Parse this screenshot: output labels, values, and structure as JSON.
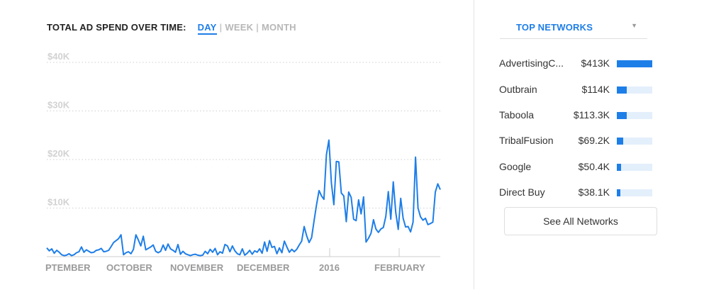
{
  "header": {
    "title": "TOTAL AD SPEND OVER TIME:",
    "tabs": [
      {
        "label": "DAY",
        "active": true
      },
      {
        "label": "WEEK",
        "active": false
      },
      {
        "label": "MONTH",
        "active": false
      }
    ],
    "separator": "|"
  },
  "chart_data": {
    "type": "line",
    "title": "TOTAL AD SPEND OVER TIME:",
    "xlabel": "",
    "ylabel": "",
    "ylim": [
      0,
      40000
    ],
    "y_ticks": [
      {
        "value": 40000,
        "label": "$40K"
      },
      {
        "value": 30000,
        "label": "$30K"
      },
      {
        "value": 20000,
        "label": "$20K"
      },
      {
        "value": 10000,
        "label": "$10K"
      }
    ],
    "x_tick_labels": [
      "PTEMBER",
      "OCTOBER",
      "NOVEMBER",
      "DECEMBER",
      "2016",
      "FEBRUARY"
    ],
    "grid": true,
    "line_color": "#1e7ee8",
    "series": [
      {
        "values": [
          1800,
          1200,
          1600,
          700,
          1300,
          900,
          400,
          200,
          300,
          600,
          200,
          400,
          800,
          1000,
          2000,
          900,
          1400,
          1100,
          800,
          900,
          1300,
          1400,
          1700,
          1000,
          1100,
          1300,
          2100,
          2900,
          3300,
          3700,
          4500,
          400,
          800,
          1000,
          600,
          1500,
          4500,
          3400,
          2200,
          4200,
          1400,
          1700,
          2000,
          2400,
          1100,
          800,
          1100,
          2400,
          1300,
          2600,
          1600,
          1300,
          900,
          2500,
          500,
          1100,
          600,
          400,
          200,
          400,
          500,
          300,
          200,
          300,
          1100,
          600,
          1500,
          900,
          1700,
          400,
          1000,
          700,
          2500,
          2200,
          1000,
          2200,
          1200,
          600,
          400,
          1600,
          300,
          700,
          1300,
          500,
          1200,
          900,
          1600,
          700,
          3000,
          1100,
          3300,
          1900,
          2100,
          600,
          1800,
          800,
          3200,
          2000,
          900,
          1500,
          1000,
          1500,
          2400,
          3200,
          6200,
          4300,
          2900,
          3900,
          7400,
          10700,
          13600,
          12500,
          11800,
          21000,
          24000,
          15200,
          10700,
          19600,
          19500,
          13100,
          12500,
          7200,
          13300,
          12200,
          7700,
          7400,
          11700,
          8800,
          12300,
          3000,
          3800,
          4800,
          7600,
          5700,
          5000,
          5700,
          6000,
          8300,
          13400,
          7700,
          15400,
          9100,
          5600,
          12000,
          7900,
          6100,
          6200,
          5100,
          7100,
          20500,
          10000,
          8200,
          7500,
          7900,
          6600,
          6800,
          7100,
          13300,
          15000,
          13800
        ]
      }
    ]
  },
  "sidebar": {
    "dropdown_label": "TOP NETWORKS",
    "caret_icon": "chevron-down-icon",
    "networks": [
      {
        "name": "AdvertisingC...",
        "value": "$413K",
        "share": 1.0
      },
      {
        "name": "Outbrain",
        "value": "$114K",
        "share": 0.28
      },
      {
        "name": "Taboola",
        "value": "$113.3K",
        "share": 0.27
      },
      {
        "name": "TribalFusion",
        "value": "$69.2K",
        "share": 0.17
      },
      {
        "name": "Google",
        "value": "$50.4K",
        "share": 0.12
      },
      {
        "name": "Direct Buy",
        "value": "$38.1K",
        "share": 0.09
      }
    ],
    "see_all_label": "See All Networks",
    "accent_color": "#1e7ee8",
    "bar_track_color": "#e3effb"
  }
}
